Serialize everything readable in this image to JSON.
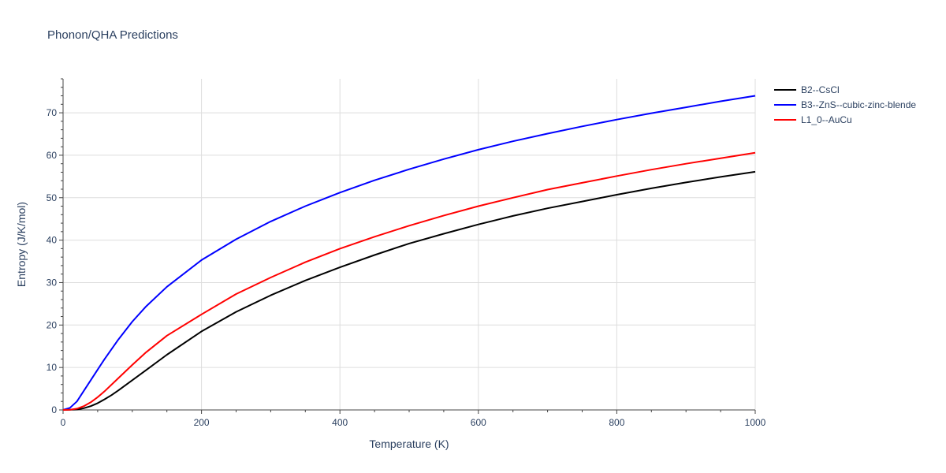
{
  "chart_data": {
    "type": "line",
    "title": "Phonon/QHA Predictions",
    "xlabel": "Temperature (K)",
    "ylabel": "Entropy (J/K/mol)",
    "xlim": [
      0,
      1000
    ],
    "ylim": [
      0,
      78
    ],
    "x_ticks": [
      0,
      200,
      400,
      600,
      800,
      1000
    ],
    "y_ticks": [
      0,
      10,
      20,
      30,
      40,
      50,
      60,
      70
    ],
    "grid": true,
    "legend_position": "top-right",
    "series": [
      {
        "name": "B2--CsCl",
        "color": "#000000",
        "x": [
          0,
          20,
          30,
          40,
          50,
          60,
          70,
          80,
          100,
          120,
          150,
          200,
          250,
          300,
          350,
          400,
          450,
          500,
          550,
          600,
          650,
          700,
          750,
          800,
          850,
          900,
          950,
          1000
        ],
        "y": [
          0,
          0.1,
          0.4,
          0.9,
          1.6,
          2.5,
          3.5,
          4.6,
          7.0,
          9.4,
          13.0,
          18.5,
          23.1,
          27.0,
          30.5,
          33.6,
          36.5,
          39.2,
          41.5,
          43.7,
          45.7,
          47.5,
          49.1,
          50.7,
          52.2,
          53.6,
          54.9,
          56.1
        ]
      },
      {
        "name": "B3--ZnS--cubic-zinc-blende",
        "color": "#0000ff",
        "x": [
          0,
          10,
          20,
          30,
          40,
          50,
          60,
          80,
          100,
          120,
          150,
          200,
          250,
          300,
          350,
          400,
          450,
          500,
          550,
          600,
          650,
          700,
          750,
          800,
          850,
          900,
          950,
          1000
        ],
        "y": [
          0,
          0.5,
          2.0,
          4.5,
          7.0,
          9.5,
          12.0,
          16.6,
          20.8,
          24.4,
          29.0,
          35.3,
          40.2,
          44.4,
          48.0,
          51.2,
          54.1,
          56.7,
          59.1,
          61.3,
          63.3,
          65.1,
          66.8,
          68.4,
          69.9,
          71.3,
          72.7,
          74.0
        ]
      },
      {
        "name": "L1_0--AuCu",
        "color": "#ff0000",
        "x": [
          0,
          10,
          20,
          30,
          40,
          50,
          60,
          80,
          100,
          120,
          150,
          200,
          250,
          300,
          350,
          400,
          450,
          500,
          550,
          600,
          650,
          700,
          750,
          800,
          850,
          900,
          950,
          1000
        ],
        "y": [
          0,
          0.05,
          0.3,
          0.9,
          1.8,
          3.0,
          4.4,
          7.5,
          10.6,
          13.6,
          17.5,
          22.5,
          27.3,
          31.2,
          34.8,
          38.0,
          40.8,
          43.4,
          45.8,
          48.0,
          50.0,
          51.9,
          53.5,
          55.1,
          56.6,
          58.0,
          59.3,
          60.6
        ]
      }
    ]
  },
  "colors": {
    "grid": "#dddddd",
    "axis": "#444444",
    "text": "#2a3f5f"
  }
}
